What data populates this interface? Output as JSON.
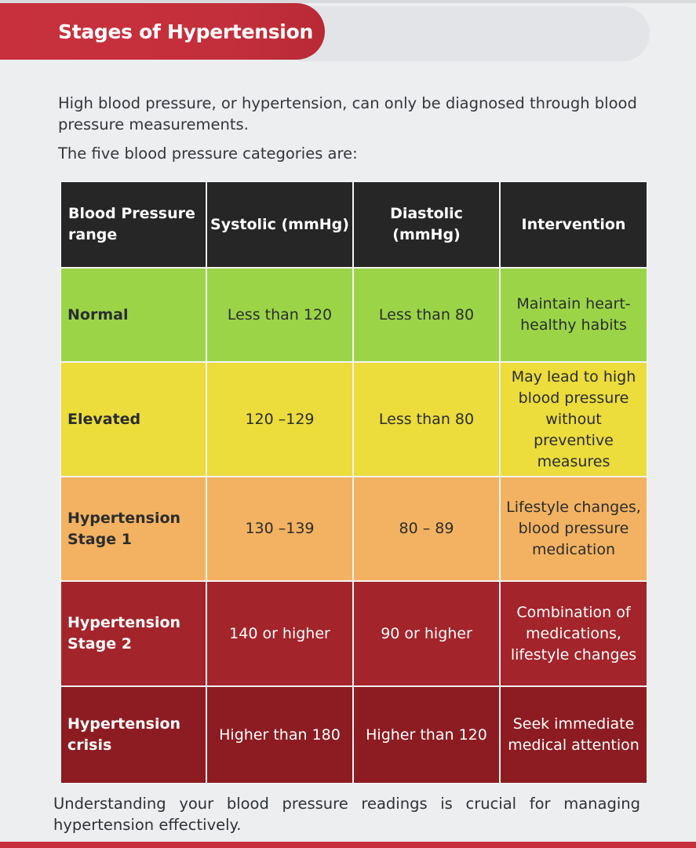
{
  "header": {
    "title": "Stages of Hypertension"
  },
  "intro": {
    "line1": "High blood pressure, or hypertension, can only be diagnosed through blood pressure measurements.",
    "line2": "The five blood pressure categories are:"
  },
  "table": {
    "headers": [
      "Blood Pressure range",
      "Systolic (mmHg)",
      "Diastolic (mmHg)",
      "Intervention"
    ],
    "rows": [
      {
        "category": "Normal",
        "systolic": "Less than 120",
        "diastolic": "Less than 80",
        "intervention": "Maintain heart-healthy habits",
        "color": "#9bd547"
      },
      {
        "category": "Elevated",
        "systolic": "120 –129",
        "diastolic": "Less than 80",
        "intervention": "May lead to high blood pressure without preventive measures",
        "color": "#ecdc3c"
      },
      {
        "category": "Hypertension Stage 1",
        "systolic": "130 –139",
        "diastolic": "80 – 89",
        "intervention": "Lifestyle changes, blood pressure medication",
        "color": "#f3b261"
      },
      {
        "category": "Hypertension Stage 2",
        "systolic": "140 or higher",
        "diastolic": "90 or higher",
        "intervention": "Combination of medications, lifestyle changes",
        "color": "#a4242b"
      },
      {
        "category": "Hypertension crisis",
        "systolic": "Higher than 180",
        "diastolic": "Higher than 120",
        "intervention": "Seek immediate medical attention",
        "color": "#8d1c22"
      }
    ]
  },
  "footer": {
    "text": "Understanding your blood pressure readings is crucial for managing hypertension effectively."
  },
  "colors": {
    "accent": "#c8303d",
    "header_bg": "#262626"
  }
}
